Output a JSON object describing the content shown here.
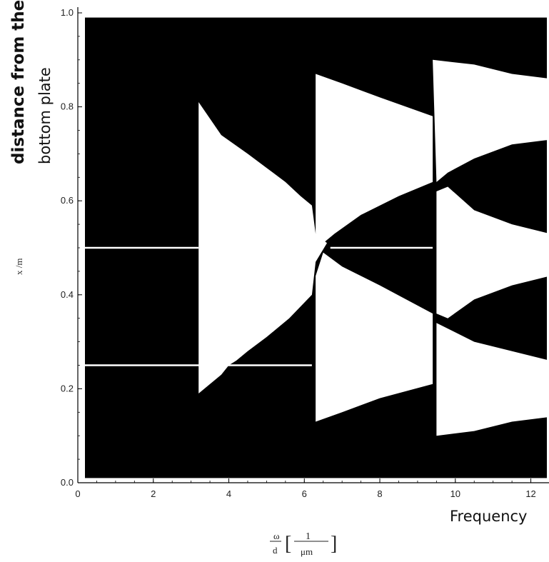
{
  "chart_data": {
    "type": "heatmap",
    "title": "",
    "annotations": {
      "y_title_line1": "distance from the",
      "y_title_line2": "bottom plate",
      "x_title": "Frequency"
    },
    "ylabel": "x /m",
    "xlabel_numerator": "ω",
    "xlabel_denominator": "d",
    "xlabel_fraction_num": "1",
    "xlabel_fraction_den": "μm",
    "xlim": [
      0,
      12.5
    ],
    "ylim": [
      0,
      1.0
    ],
    "x_ticks": [
      0,
      2,
      4,
      6,
      8,
      10,
      12
    ],
    "x_tick_labels": [
      "0",
      "2",
      "4",
      "6",
      "8",
      "10",
      "12"
    ],
    "y_ticks": [
      0.0,
      0.2,
      0.4,
      0.6,
      0.8,
      1.0
    ],
    "y_tick_labels": [
      "0.0",
      "0.2",
      "0.4",
      "0.6",
      "0.8",
      "1.0"
    ],
    "colors": {
      "background": "#000000",
      "region": "#ffffff"
    },
    "horizontal_lines": [
      {
        "y": 0.5,
        "x_start": 0.0,
        "x_end": 3.2
      },
      {
        "y": 0.25,
        "x_start": 0.0,
        "x_end": 6.2
      },
      {
        "y": 0.5,
        "x_start": 6.5,
        "x_end": 9.4
      }
    ],
    "white_regions": [
      {
        "name": "region-lobe-1",
        "points": [
          [
            3.2,
            0.81
          ],
          [
            3.8,
            0.74
          ],
          [
            4.5,
            0.7
          ],
          [
            5.0,
            0.67
          ],
          [
            5.5,
            0.64
          ],
          [
            5.9,
            0.61
          ],
          [
            6.2,
            0.59
          ],
          [
            6.3,
            0.53
          ],
          [
            6.6,
            0.51
          ],
          [
            6.3,
            0.47
          ],
          [
            6.2,
            0.4
          ],
          [
            5.6,
            0.35
          ],
          [
            5.0,
            0.31
          ],
          [
            4.5,
            0.28
          ],
          [
            4.2,
            0.26
          ],
          [
            4.0,
            0.25
          ],
          [
            3.8,
            0.23
          ],
          [
            3.2,
            0.19
          ]
        ]
      },
      {
        "name": "region-lobe-2a",
        "points": [
          [
            6.3,
            0.87
          ],
          [
            7.0,
            0.85
          ],
          [
            8.0,
            0.82
          ],
          [
            9.4,
            0.78
          ],
          [
            9.4,
            0.64
          ],
          [
            8.5,
            0.61
          ],
          [
            7.5,
            0.57
          ],
          [
            6.8,
            0.53
          ],
          [
            6.5,
            0.51
          ],
          [
            6.3,
            0.52
          ]
        ]
      },
      {
        "name": "region-lobe-2b",
        "points": [
          [
            6.5,
            0.49
          ],
          [
            7.0,
            0.46
          ],
          [
            8.0,
            0.42
          ],
          [
            9.4,
            0.36
          ],
          [
            9.4,
            0.21
          ],
          [
            8.0,
            0.18
          ],
          [
            7.0,
            0.15
          ],
          [
            6.3,
            0.13
          ],
          [
            6.3,
            0.44
          ]
        ]
      },
      {
        "name": "region-lobe-3a",
        "points": [
          [
            9.4,
            0.9
          ],
          [
            10.5,
            0.89
          ],
          [
            11.5,
            0.87
          ],
          [
            12.5,
            0.86
          ],
          [
            12.5,
            0.73
          ],
          [
            11.5,
            0.72
          ],
          [
            10.5,
            0.69
          ],
          [
            9.8,
            0.66
          ],
          [
            9.5,
            0.64
          ]
        ]
      },
      {
        "name": "region-lobe-3b",
        "points": [
          [
            9.8,
            0.63
          ],
          [
            10.5,
            0.58
          ],
          [
            11.5,
            0.55
          ],
          [
            12.5,
            0.53
          ],
          [
            12.5,
            0.44
          ],
          [
            11.5,
            0.42
          ],
          [
            10.5,
            0.39
          ],
          [
            9.8,
            0.35
          ],
          [
            9.5,
            0.36
          ],
          [
            9.5,
            0.62
          ]
        ]
      },
      {
        "name": "region-lobe-3c",
        "points": [
          [
            9.5,
            0.34
          ],
          [
            10.5,
            0.3
          ],
          [
            11.5,
            0.28
          ],
          [
            12.5,
            0.26
          ],
          [
            12.5,
            0.14
          ],
          [
            11.5,
            0.13
          ],
          [
            10.5,
            0.11
          ],
          [
            9.5,
            0.1
          ]
        ]
      }
    ]
  }
}
